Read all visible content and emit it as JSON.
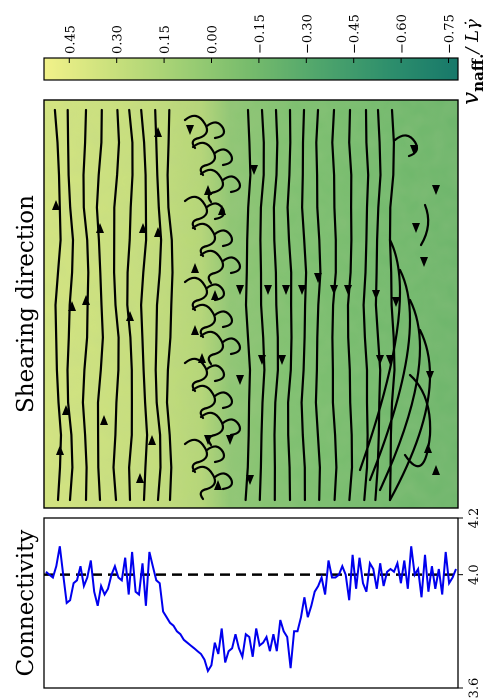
{
  "colorbar": {
    "label": "v_naff. / Lγ̇",
    "label_main": "v",
    "label_sub": "naff.",
    "label_rest": "/ Lγ̇",
    "ticks": [
      "0.45",
      "0.30",
      "0.15",
      "0.00",
      "−0.15",
      "−0.30",
      "−0.45",
      "−0.60",
      "−0.75"
    ],
    "range": [
      0.53,
      -0.78
    ],
    "colors": [
      "#f2f28a",
      "#c9e07c",
      "#9fcf74",
      "#76bb6c",
      "#4fa56c",
      "#2e8f6c",
      "#17786a"
    ]
  },
  "flow_panel": {
    "label": "Shearing direction"
  },
  "connectivity_panel": {
    "label": "Connectivity",
    "ticks": [
      "3.6",
      "4.0",
      "4.2"
    ],
    "reference_value": 4.0
  },
  "chart_data": {
    "type": "line",
    "title": "",
    "xlabel": "Connectivity",
    "xlim": [
      3.6,
      4.2
    ],
    "reference_line": 4.0,
    "series": [
      {
        "values": [
          4.01,
          4.0,
          3.99,
          4.03,
          4.1,
          4.0,
          3.9,
          3.91,
          3.97,
          3.98,
          4.03,
          3.96,
          3.99,
          4.05,
          3.94,
          3.89,
          3.96,
          3.93,
          3.95,
          4.0,
          4.03,
          3.99,
          3.98,
          4.06,
          3.93,
          4.08,
          3.94,
          3.93,
          4.04,
          3.89,
          4.08,
          4.03,
          3.98,
          3.97,
          3.87,
          3.85,
          3.83,
          3.82,
          3.8,
          3.79,
          3.77,
          3.76,
          3.75,
          3.74,
          3.73,
          3.72,
          3.7,
          3.66,
          3.68,
          3.76,
          3.72,
          3.81,
          3.69,
          3.73,
          3.74,
          3.79,
          3.74,
          3.71,
          3.79,
          3.78,
          3.71,
          3.81,
          3.75,
          3.76,
          3.78,
          3.73,
          3.79,
          3.73,
          3.84,
          3.8,
          3.78,
          3.67,
          3.8,
          3.8,
          3.85,
          3.92,
          3.85,
          3.89,
          3.94,
          3.96,
          3.99,
          3.93,
          4.05,
          3.99,
          3.99,
          4.0,
          4.03,
          4.0,
          3.91,
          4.07,
          3.95,
          4.06,
          3.97,
          3.94,
          4.04,
          4.02,
          3.95,
          4.04,
          3.96,
          4.01,
          4.02,
          4.01,
          4.04,
          3.97,
          4.05,
          3.95,
          4.1,
          4.0,
          4.02,
          3.92,
          4.07,
          3.94,
          4.03,
          3.95,
          4.02,
          3.93,
          4.08,
          3.97,
          3.99,
          4.02
        ]
      }
    ]
  }
}
